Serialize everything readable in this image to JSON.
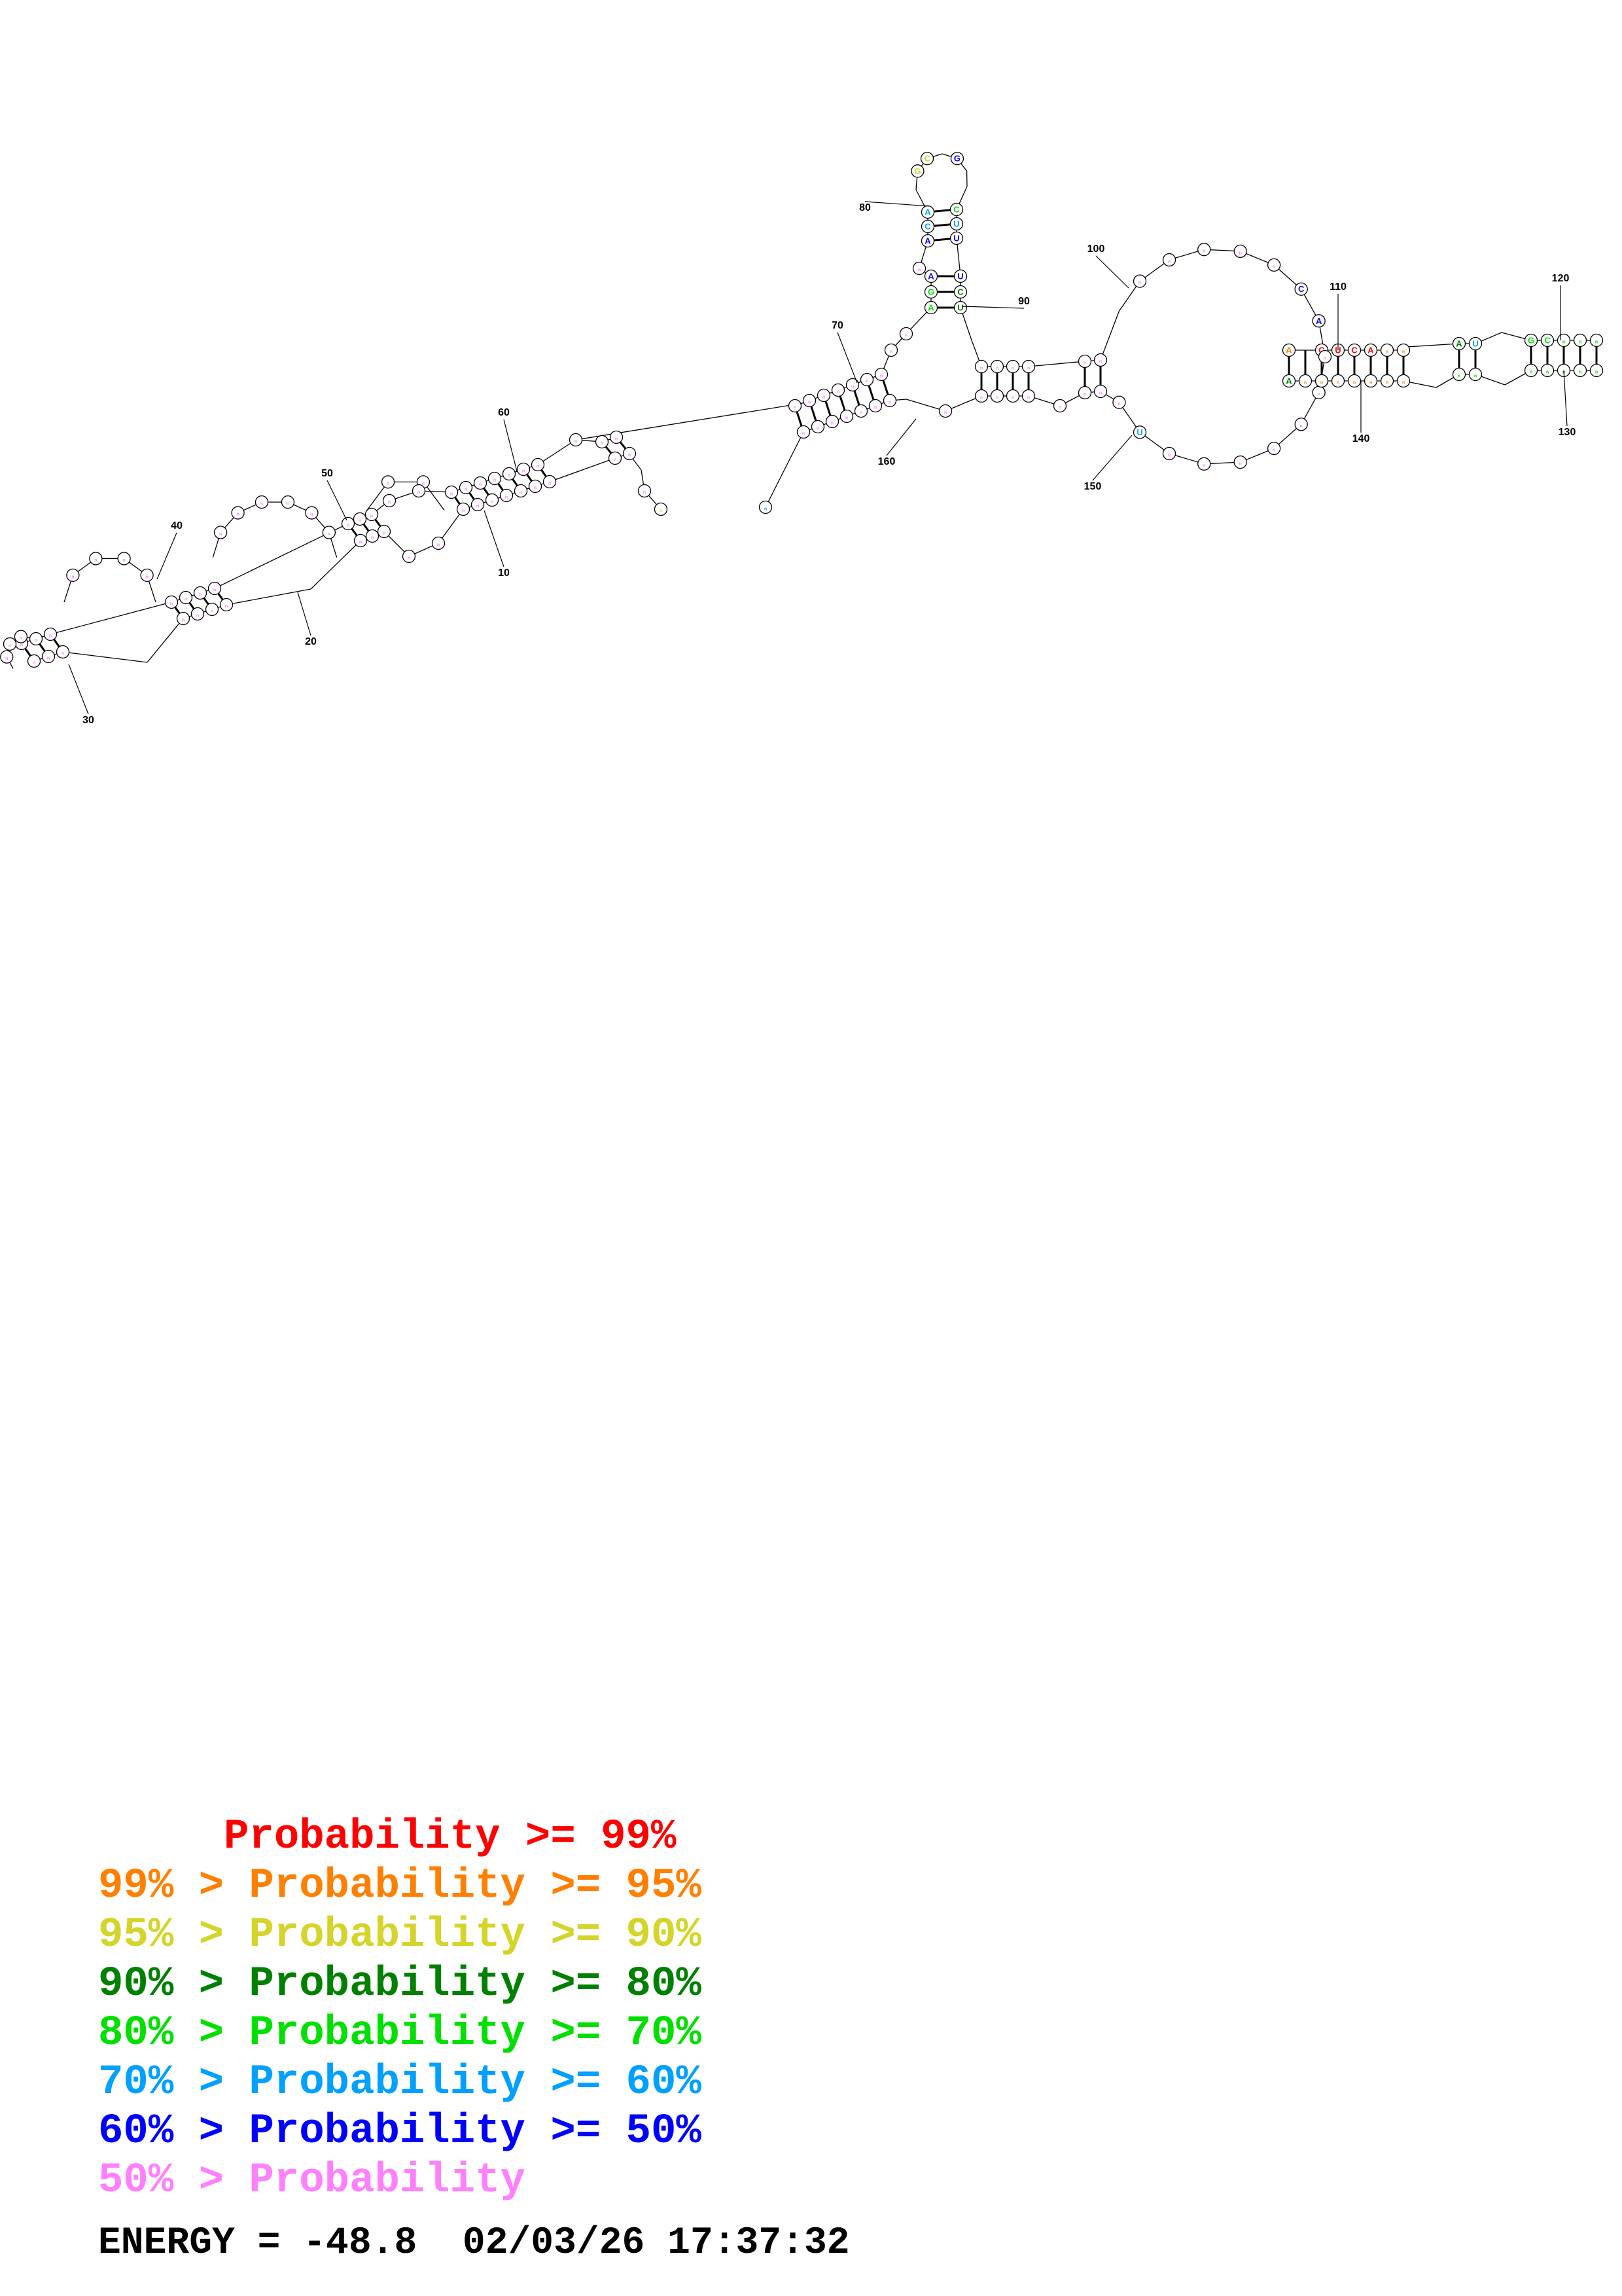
{
  "colors": {
    "p99": "#ff0000",
    "p95": "#ff8000",
    "p90": "#d4d42a",
    "p80": "#008000",
    "p70": "#00e000",
    "p60": "#00a0ff",
    "p50": "#0000ff",
    "low": "#ff80ff"
  },
  "structure": {
    "position_labels": [
      "10",
      "20",
      "30",
      "40",
      "50",
      "60",
      "70",
      "80",
      "90",
      "100",
      "110",
      "120",
      "130",
      "140",
      "150",
      "160"
    ],
    "visible_bases": [
      {
        "base": "G",
        "prob": "p90"
      },
      {
        "base": "C",
        "prob": "p90"
      },
      {
        "base": "G",
        "prob": "p50"
      },
      {
        "base": "A",
        "prob": "p60"
      },
      {
        "base": "C",
        "prob": "p60"
      },
      {
        "base": "A",
        "prob": "p50"
      },
      {
        "base": "U",
        "prob": "p50"
      },
      {
        "base": "U",
        "prob": "p60"
      },
      {
        "base": "A",
        "prob": "p50"
      },
      {
        "base": "U",
        "prob": "p50"
      },
      {
        "base": "C",
        "prob": "p70"
      },
      {
        "base": "G",
        "prob": "p70"
      },
      {
        "base": "A",
        "prob": "p70"
      },
      {
        "base": "U",
        "prob": "p60"
      },
      {
        "base": "C",
        "prob": "p80"
      },
      {
        "base": "U",
        "prob": "p80"
      },
      {
        "base": "C",
        "prob": "p50"
      },
      {
        "base": "A",
        "prob": "p50"
      },
      {
        "base": "A",
        "prob": "p95"
      },
      {
        "base": "A",
        "prob": "p80"
      },
      {
        "base": "C",
        "prob": "p99"
      },
      {
        "base": "G",
        "prob": "p99"
      },
      {
        "base": "U",
        "prob": "p99"
      },
      {
        "base": "G",
        "prob": "p70"
      },
      {
        "base": "C",
        "prob": "p99"
      },
      {
        "base": "A",
        "prob": "p99"
      },
      {
        "base": "A",
        "prob": "p80"
      },
      {
        "base": "U",
        "prob": "p60"
      },
      {
        "base": "C",
        "prob": "p70"
      }
    ]
  },
  "legend": [
    {
      "text": "     Probability >= 99%",
      "prob": "p99"
    },
    {
      "text": "99% > Probability >= 95%",
      "prob": "p95"
    },
    {
      "text": "95% > Probability >= 90%",
      "prob": "p90"
    },
    {
      "text": "90% > Probability >= 80%",
      "prob": "p80"
    },
    {
      "text": "80% > Probability >= 70%",
      "prob": "p70"
    },
    {
      "text": "70% > Probability >= 60%",
      "prob": "p60"
    },
    {
      "text": "60% > Probability >= 50%",
      "prob": "p50"
    },
    {
      "text": "50% > Probability",
      "prob": "low"
    }
  ],
  "energy_line": "ENERGY = -48.8  02/03/26 17:37:32"
}
